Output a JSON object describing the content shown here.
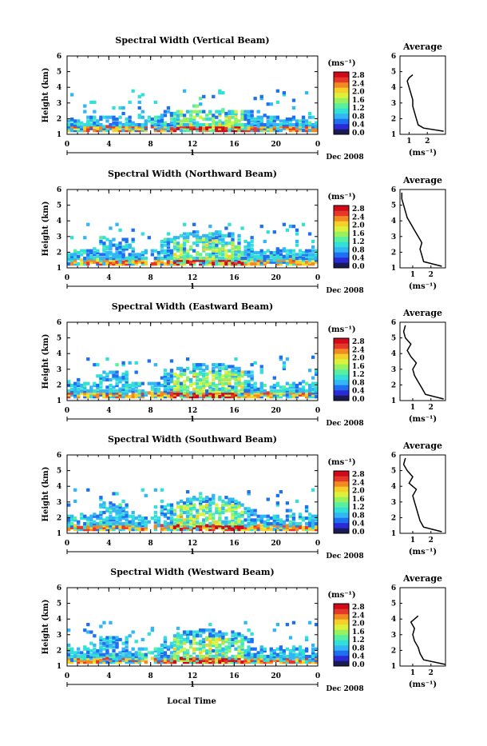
{
  "figure": {
    "xlabel": "Local Time",
    "date_label": "Dec 2008",
    "day_label": "1",
    "ylabel": "Height (km)",
    "unit_label": "(ms⁻¹)",
    "average_title": "Average",
    "average_xlabel": "(ms⁻¹)"
  },
  "colorbar": {
    "labels": [
      "2.8",
      "2.4",
      "2.0",
      "1.6",
      "1.2",
      "0.8",
      "0.4",
      "0.0"
    ],
    "colors": [
      "#1a1a55",
      "#2a2ad8",
      "#1f70f0",
      "#33b6f5",
      "#33e0d8",
      "#58f0a0",
      "#98f260",
      "#dcf23a",
      "#f6d02a",
      "#f28a22",
      "#e6382a",
      "#d00a18"
    ]
  },
  "chart_data": [
    {
      "type": "heatmap",
      "title": "Spectral Width (Vertical Beam)",
      "xticks": [
        "0",
        "4",
        "8",
        "12",
        "16",
        "20",
        "0"
      ],
      "yticks": [
        "1",
        "2",
        "3",
        "4",
        "5",
        "6"
      ],
      "ylim": [
        1,
        6
      ],
      "xlim": [
        0,
        24
      ],
      "clim": [
        0.0,
        2.8
      ],
      "avg_xticks": [
        "1",
        "2"
      ],
      "avg_xlim": [
        0.5,
        3.0
      ],
      "average_profile": {
        "height": [
          1.2,
          1.4,
          1.6,
          2.0,
          2.4,
          2.8,
          3.2,
          3.6,
          4.0,
          4.4,
          4.6,
          4.8
        ],
        "width": [
          2.9,
          1.8,
          1.5,
          1.4,
          1.3,
          1.2,
          1.2,
          1.1,
          1.0,
          0.9,
          1.0,
          1.2
        ]
      }
    },
    {
      "type": "heatmap",
      "title": "Spectral Width (Northward Beam)",
      "xticks": [
        "0",
        "4",
        "8",
        "12",
        "16",
        "20",
        "0"
      ],
      "yticks": [
        "1",
        "2",
        "3",
        "4",
        "5",
        "6"
      ],
      "ylim": [
        1,
        6
      ],
      "xlim": [
        0,
        24
      ],
      "clim": [
        0.0,
        2.8
      ],
      "avg_xticks": [
        "1",
        "2"
      ],
      "avg_xlim": [
        0.3,
        2.8
      ],
      "average_profile": {
        "height": [
          1.1,
          1.4,
          1.8,
          2.2,
          2.6,
          3.0,
          3.4,
          3.8,
          4.2,
          4.6,
          5.0,
          5.4,
          5.8
        ],
        "width": [
          2.6,
          1.6,
          1.5,
          1.4,
          1.5,
          1.3,
          1.1,
          0.9,
          0.7,
          0.6,
          0.5,
          0.4,
          0.4
        ]
      }
    },
    {
      "type": "heatmap",
      "title": "Spectral Width (Eastward Beam)",
      "xticks": [
        "0",
        "4",
        "8",
        "12",
        "16",
        "20",
        "0"
      ],
      "yticks": [
        "1",
        "2",
        "3",
        "4",
        "5",
        "6"
      ],
      "ylim": [
        1,
        6
      ],
      "xlim": [
        0,
        24
      ],
      "clim": [
        0.0,
        2.8
      ],
      "avg_xticks": [
        "1",
        "2"
      ],
      "avg_xlim": [
        0.3,
        2.8
      ],
      "average_profile": {
        "height": [
          1.1,
          1.4,
          1.8,
          2.2,
          2.6,
          3.0,
          3.4,
          3.8,
          4.2,
          4.6,
          5.0,
          5.4,
          5.8
        ],
        "width": [
          2.7,
          1.7,
          1.5,
          1.3,
          1.1,
          1.0,
          1.2,
          0.9,
          0.7,
          0.9,
          0.6,
          0.5,
          0.6
        ]
      }
    },
    {
      "type": "heatmap",
      "title": "Spectral Width (Southward Beam)",
      "xticks": [
        "0",
        "4",
        "8",
        "12",
        "16",
        "20",
        "0"
      ],
      "yticks": [
        "1",
        "2",
        "3",
        "4",
        "5",
        "6"
      ],
      "ylim": [
        1,
        6
      ],
      "xlim": [
        0,
        24
      ],
      "clim": [
        0.0,
        2.8
      ],
      "avg_xticks": [
        "1",
        "2"
      ],
      "avg_xlim": [
        0.3,
        2.8
      ],
      "average_profile": {
        "height": [
          1.1,
          1.4,
          1.8,
          2.2,
          2.6,
          3.0,
          3.4,
          3.8,
          4.2,
          4.6,
          5.0,
          5.4,
          5.8
        ],
        "width": [
          2.6,
          1.6,
          1.4,
          1.3,
          1.2,
          1.1,
          1.0,
          1.2,
          0.8,
          1.0,
          0.7,
          0.5,
          0.6
        ]
      }
    },
    {
      "type": "heatmap",
      "title": "Spectral Width (Westward Beam)",
      "xticks": [
        "0",
        "4",
        "8",
        "12",
        "16",
        "20",
        "0"
      ],
      "yticks": [
        "1",
        "2",
        "3",
        "4",
        "5",
        "6"
      ],
      "ylim": [
        1,
        6
      ],
      "xlim": [
        0,
        24
      ],
      "clim": [
        0.0,
        2.8
      ],
      "avg_xticks": [
        "1",
        "2"
      ],
      "avg_xlim": [
        0.3,
        2.8
      ],
      "average_profile": {
        "height": [
          1.1,
          1.4,
          1.8,
          2.2,
          2.6,
          3.0,
          3.4,
          3.8,
          4.0,
          4.2
        ],
        "width": [
          2.8,
          1.6,
          1.4,
          1.3,
          1.1,
          1.0,
          1.1,
          0.9,
          1.1,
          1.3
        ]
      }
    }
  ]
}
